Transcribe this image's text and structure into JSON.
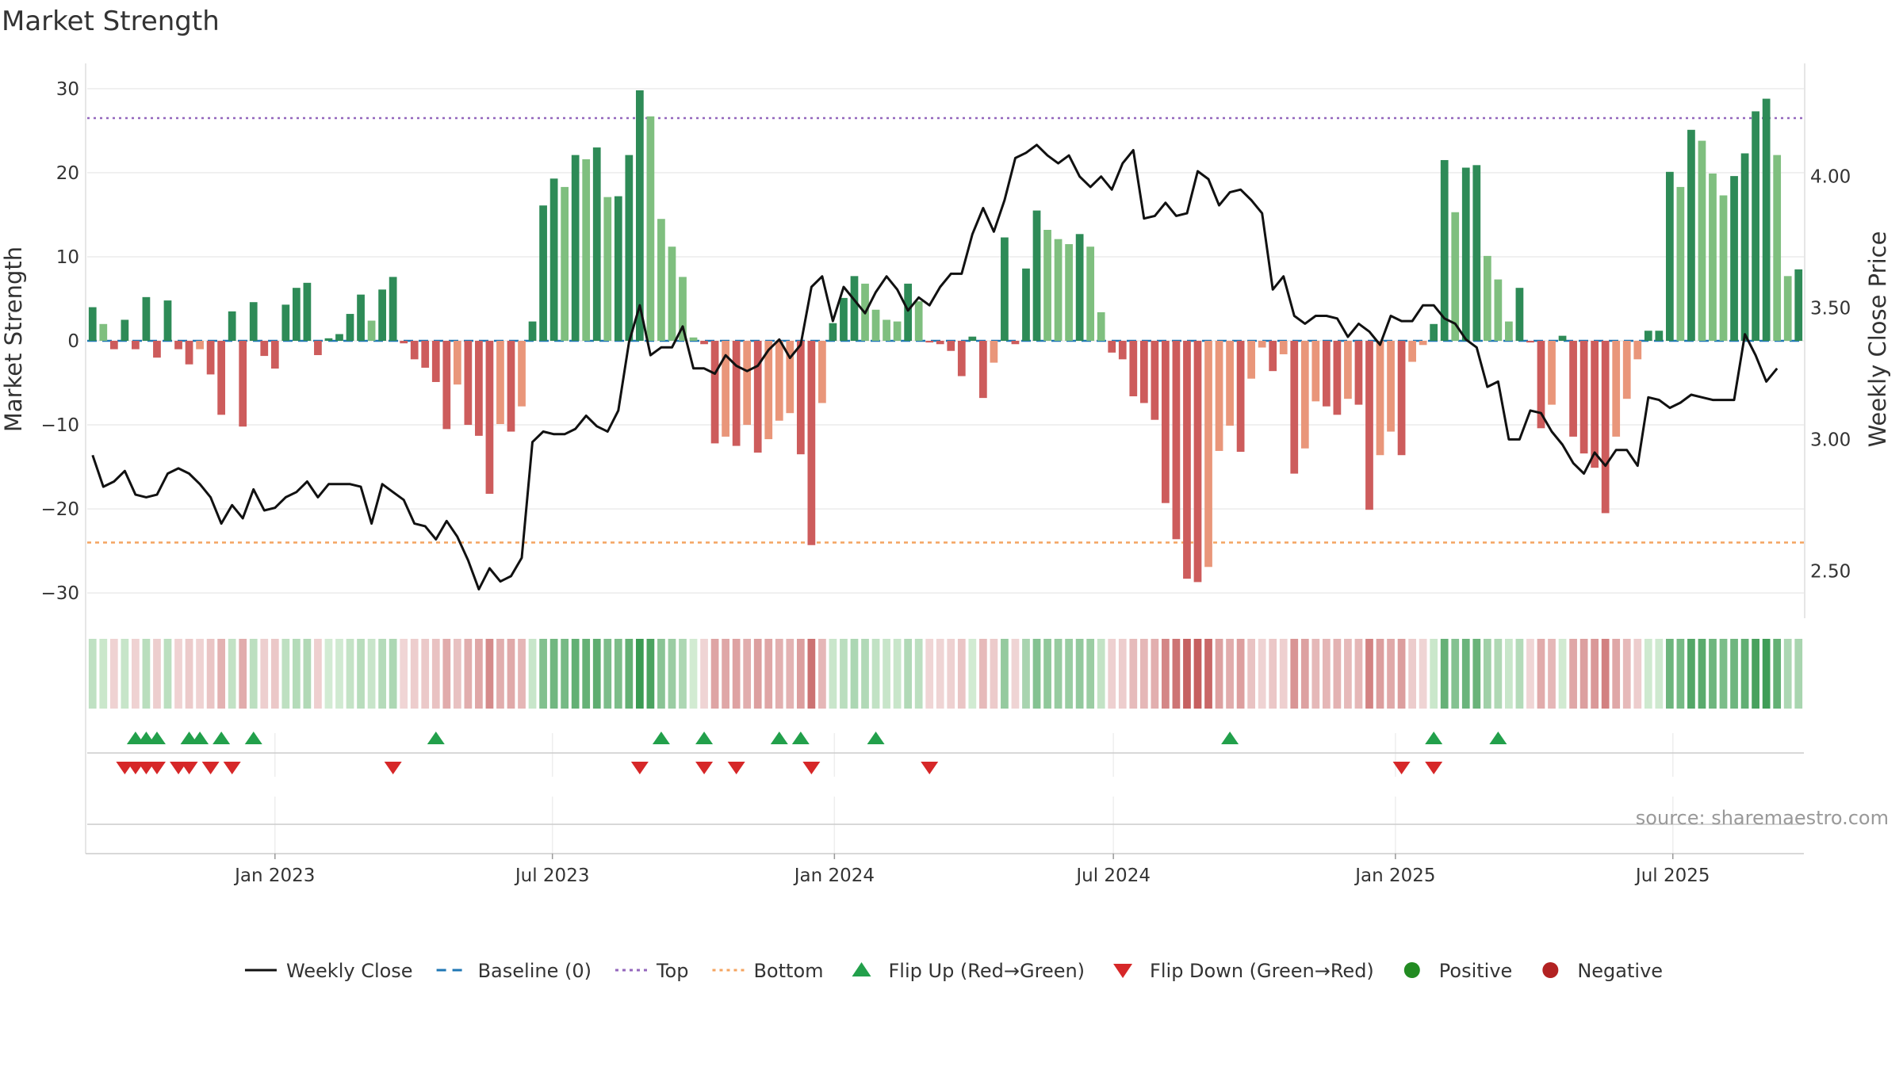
{
  "chart_data": {
    "type": "bar",
    "title": "Market Strength",
    "ylabel_left": "Market Strength",
    "ylabel_right": "Weekly Close Price",
    "source": "source: sharemaestro.com",
    "left_ylim": [
      -33,
      33
    ],
    "left_ticks": [
      30,
      20,
      10,
      0,
      -10,
      -20,
      -30
    ],
    "left_tick_labels": [
      "30",
      "20",
      "10",
      "0",
      "−10",
      "−20",
      "−30"
    ],
    "right_ylim": [
      2.32,
      4.43
    ],
    "right_ticks": [
      4.0,
      3.5,
      3.0,
      2.5
    ],
    "right_tick_labels": [
      "4.00",
      "3.50",
      "3.00",
      "2.50"
    ],
    "x_start": "2022-09-04",
    "week_step_days": 7,
    "x_ticks": [
      "2023-01-01",
      "2023-07-01",
      "2024-01-01",
      "2024-07-01",
      "2025-01-01",
      "2025-07-01"
    ],
    "x_tick_labels": [
      "Jan 2023",
      "Jul 2023",
      "Jan 2024",
      "Jul 2024",
      "Jan 2025",
      "Jul 2025"
    ],
    "top_line": 26.5,
    "bottom_line": -24,
    "strength": [
      4,
      2,
      -1,
      2.5,
      -1,
      5.2,
      -2,
      4.8,
      -1,
      -2.8,
      -1,
      -4,
      -8.8,
      3.5,
      -10.2,
      4.6,
      -1.8,
      -3.3,
      4.3,
      6.3,
      6.9,
      -1.7,
      0.3,
      0.8,
      3.2,
      5.5,
      2.4,
      6.1,
      7.6,
      -0.3,
      -2.2,
      -3.2,
      -4.9,
      -10.5,
      -5.2,
      -10,
      -11.3,
      -18.2,
      -9.9,
      -10.8,
      -7.8,
      2.3,
      16.1,
      19.3,
      18.3,
      22.1,
      21.6,
      23,
      17.1,
      17.2,
      22.1,
      29.8,
      26.7,
      14.5,
      11.2,
      7.6,
      0.4,
      -0.4,
      -12.2,
      -11.4,
      -12.5,
      -10,
      -13.3,
      -11.7,
      -9.5,
      -8.6,
      -13.5,
      -24.3,
      -7.4,
      2.1,
      5.1,
      7.7,
      6.8,
      3.7,
      2.5,
      2.3,
      6.8,
      4.7,
      -0.2,
      -0.4,
      -1.2,
      -4.2,
      0.5,
      -6.8,
      -2.6,
      12.3,
      -0.4,
      8.6,
      15.5,
      13.2,
      12.1,
      11.5,
      12.7,
      11.2,
      3.4,
      -1.4,
      -2.2,
      -6.6,
      -7.4,
      -9.4,
      -19.3,
      -23.6,
      -28.3,
      -28.7,
      -26.9,
      -13.1,
      -10.1,
      -13.2,
      -4.5,
      -0.8,
      -3.6,
      -1.6,
      -15.8,
      -12.8,
      -7.2,
      -7.8,
      -8.8,
      -6.9,
      -7.6,
      -20.1,
      -13.6,
      -10.8,
      -13.6,
      -2.5,
      -0.5,
      2.0,
      21.5,
      15.3,
      20.6,
      20.9,
      10.1,
      7.3,
      2.3,
      6.3,
      -0.2,
      -10.4,
      -7.6,
      0.6,
      -11.4,
      -13.4,
      -15.1,
      -20.5,
      -11.4,
      -6.9,
      -2.2,
      1.2,
      1.2,
      20.1,
      18.3,
      25.1,
      23.8,
      19.9,
      17.3,
      19.6,
      22.3,
      27.3,
      28.8,
      22.1,
      7.7,
      8.5
    ],
    "price": [
      2.94,
      2.82,
      2.84,
      2.88,
      2.79,
      2.78,
      2.79,
      2.87,
      2.89,
      2.87,
      2.83,
      2.78,
      2.68,
      2.75,
      2.7,
      2.81,
      2.73,
      2.74,
      2.78,
      2.8,
      2.84,
      2.78,
      2.83,
      2.83,
      2.83,
      2.82,
      2.68,
      2.83,
      2.8,
      2.77,
      2.68,
      2.67,
      2.62,
      2.69,
      2.63,
      2.54,
      2.43,
      2.51,
      2.46,
      2.48,
      2.55,
      2.99,
      3.03,
      3.02,
      3.02,
      3.04,
      3.09,
      3.05,
      3.03,
      3.11,
      3.37,
      3.51,
      3.32,
      3.35,
      3.35,
      3.43,
      3.27,
      3.27,
      3.25,
      3.32,
      3.28,
      3.26,
      3.28,
      3.34,
      3.38,
      3.31,
      3.36,
      3.58,
      3.62,
      3.45,
      3.58,
      3.53,
      3.48,
      3.56,
      3.62,
      3.57,
      3.49,
      3.54,
      3.51,
      3.58,
      3.63,
      3.63,
      3.78,
      3.88,
      3.79,
      3.91,
      4.07,
      4.09,
      4.12,
      4.08,
      4.05,
      4.08,
      4.0,
      3.96,
      4.0,
      3.95,
      4.05,
      4.1,
      3.84,
      3.85,
      3.9,
      3.85,
      3.86,
      4.02,
      3.99,
      3.89,
      3.94,
      3.95,
      3.91,
      3.86,
      3.57,
      3.62,
      3.47,
      3.44,
      3.47,
      3.47,
      3.46,
      3.39,
      3.44,
      3.41,
      3.36,
      3.47,
      3.45,
      3.45,
      3.51,
      3.51,
      3.46,
      3.44,
      3.38,
      3.35,
      3.2,
      3.22,
      3.0,
      3.0,
      3.11,
      3.1,
      3.03,
      2.98,
      2.91,
      2.87,
      2.95,
      2.9,
      2.96,
      2.96,
      2.9,
      3.16,
      3.15,
      3.12,
      3.14,
      3.17,
      3.16,
      3.15,
      3.15,
      3.15,
      3.4,
      3.32,
      3.22,
      3.27
    ],
    "flip_up": [
      4,
      5,
      6,
      9,
      10,
      12,
      15,
      32,
      53,
      57,
      64,
      66,
      73,
      106,
      125,
      131
    ],
    "flip_down": [
      3,
      4,
      5,
      6,
      8,
      9,
      11,
      13,
      28,
      51,
      57,
      60,
      67,
      78,
      122,
      125
    ],
    "colors": {
      "strong_green": "#2e8b57",
      "light_green": "#7fbf7f",
      "strong_red": "#cd5c5c",
      "light_red": "#e9967a",
      "price_line": "#111111",
      "baseline": "#1f77b4",
      "top_line": "#9467bd",
      "bottom_line": "#f4a460",
      "flip_up": "#22a04b",
      "flip_down": "#d62728",
      "positive": "#228b22",
      "negative": "#b22222"
    },
    "legend": [
      {
        "label": "Weekly Close",
        "kind": "line",
        "color": "#111111"
      },
      {
        "label": "Baseline (0)",
        "kind": "dash",
        "color": "#1f77b4"
      },
      {
        "label": "Top",
        "kind": "dot",
        "color": "#9467bd"
      },
      {
        "label": "Bottom",
        "kind": "dot",
        "color": "#f4a460"
      },
      {
        "label": "Flip Up (Red→Green)",
        "kind": "tri-up",
        "color": "#22a04b"
      },
      {
        "label": "Flip Down (Green→Red)",
        "kind": "tri-down",
        "color": "#d62728"
      },
      {
        "label": "Positive",
        "kind": "circle",
        "color": "#228b22"
      },
      {
        "label": "Negative",
        "kind": "circle",
        "color": "#b22222"
      }
    ],
    "legend_position": "bottom-center",
    "grid": true
  }
}
